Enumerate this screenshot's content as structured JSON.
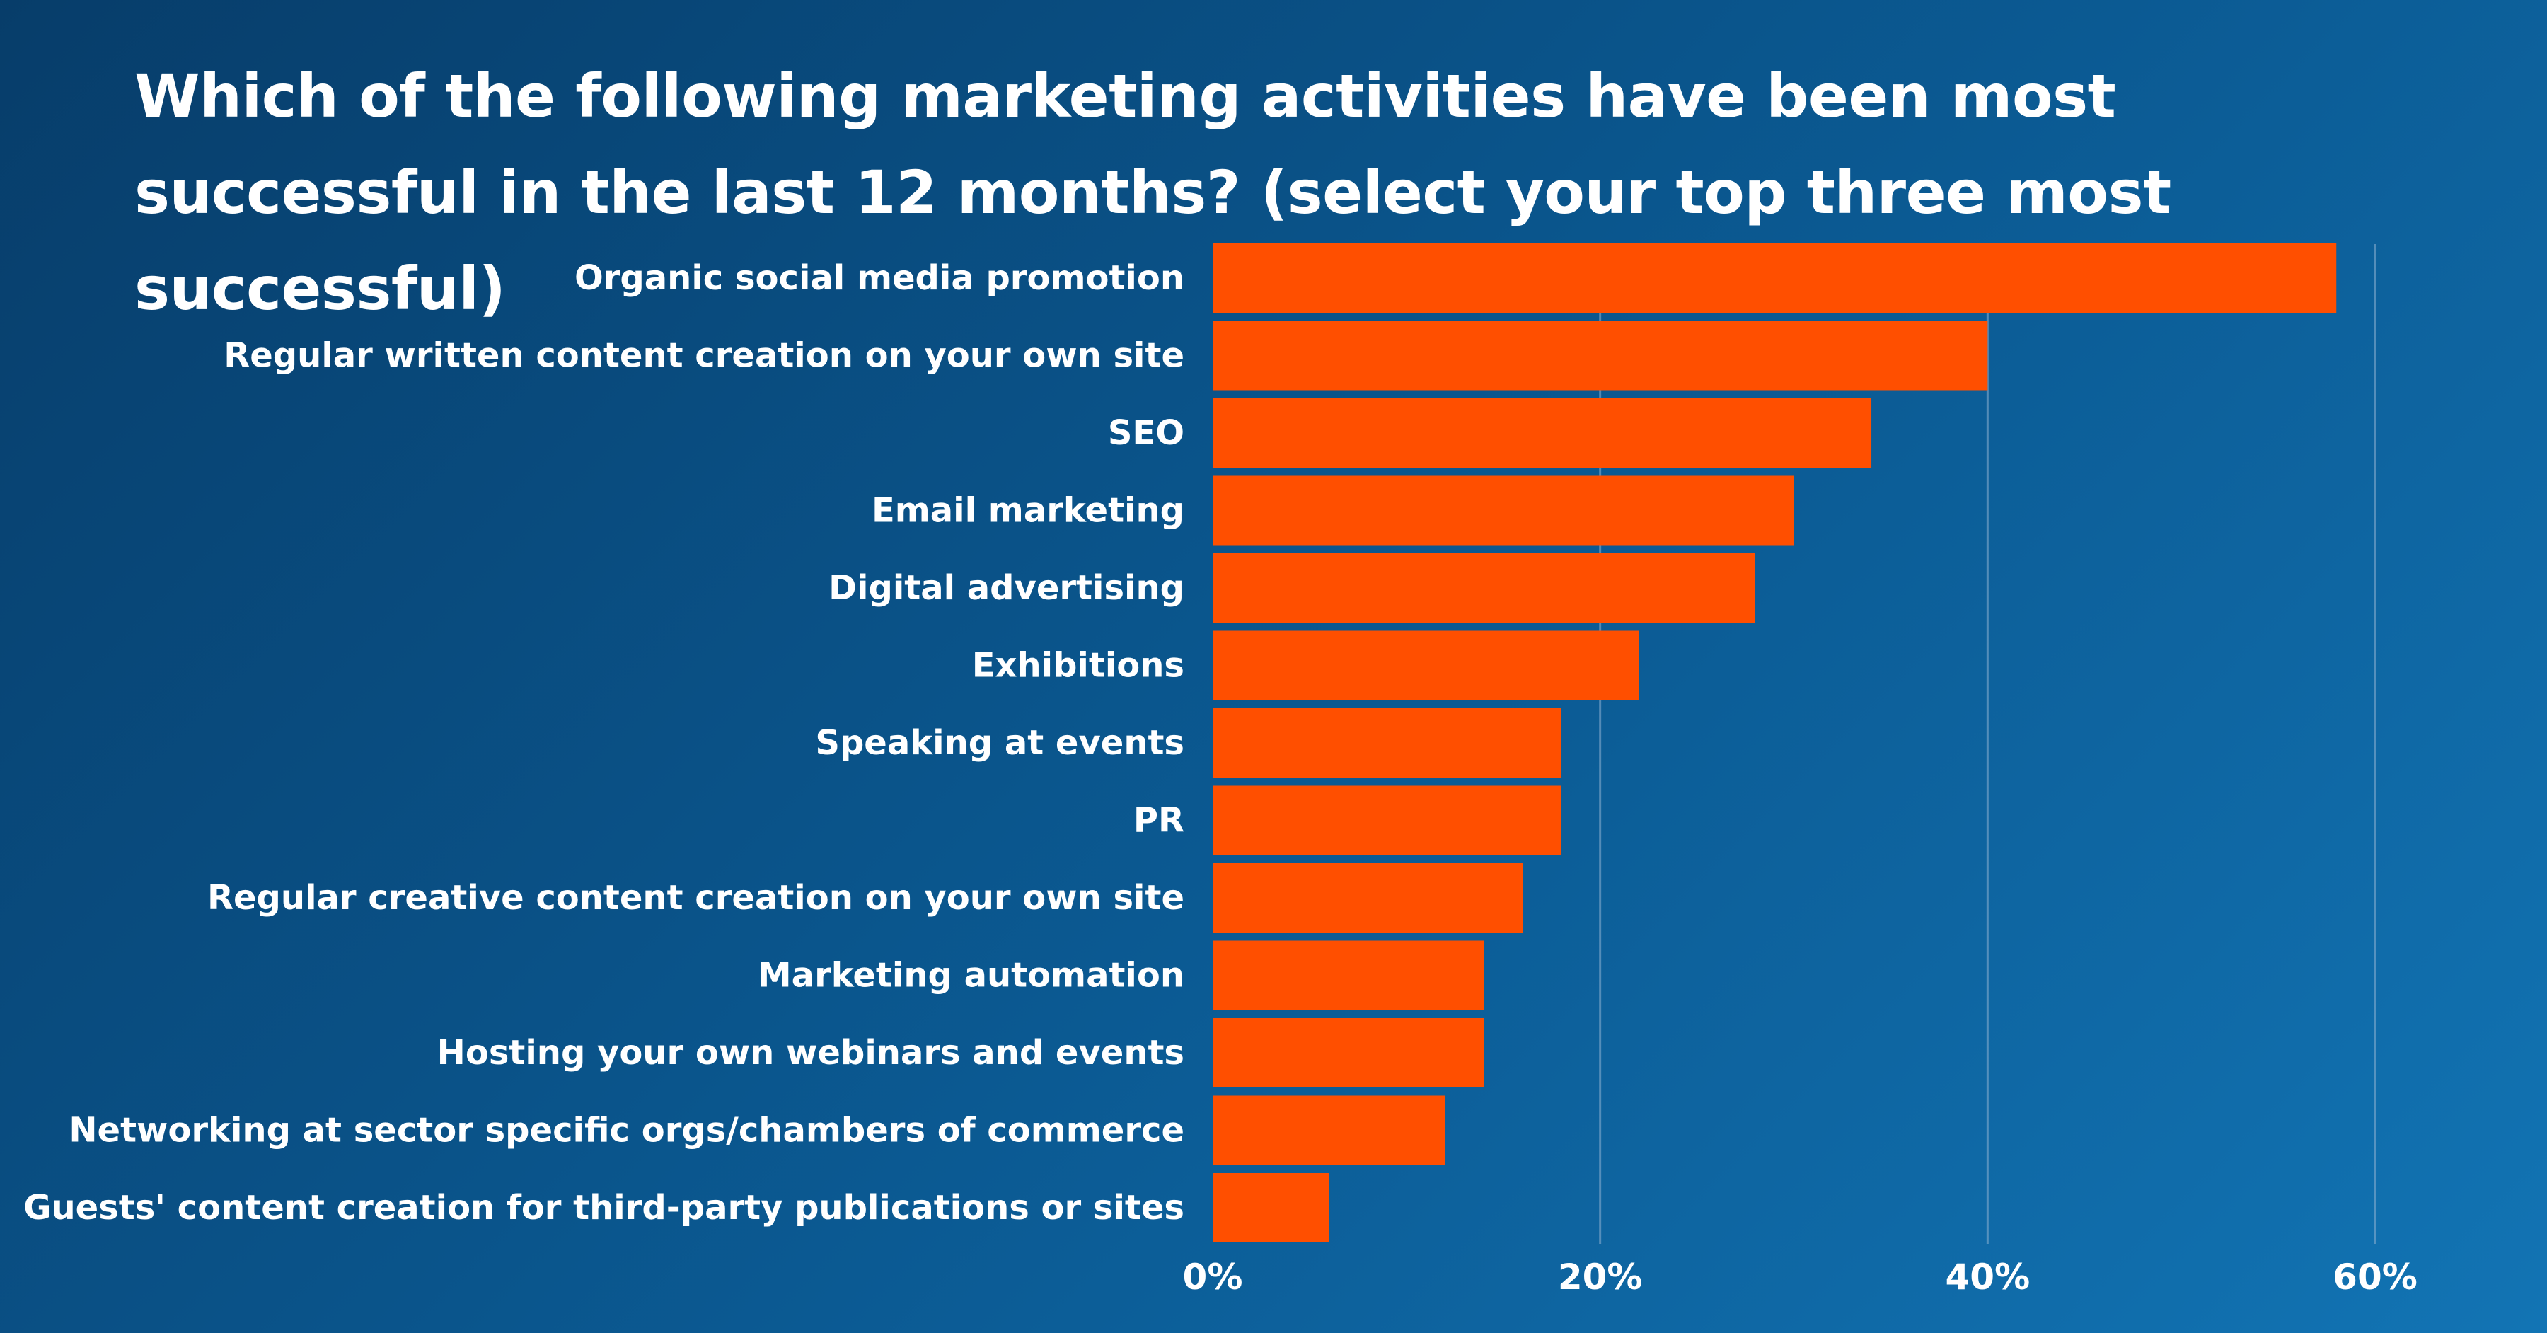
{
  "chart_data": {
    "type": "bar",
    "orientation": "horizontal",
    "title": "Which of the following marketing activities have been most successful in the last 12 months? (select your top three most successful)",
    "categories": [
      "Organic social media promotion",
      "Regular written content creation on your own site",
      "SEO",
      "Email marketing",
      "Digital advertising",
      "Exhibitions",
      "Speaking at events",
      "PR",
      "Regular creative content creation on your own site",
      "Marketing automation",
      "Hosting your own webinars and events",
      "Networking at sector specific orgs/chambers of commerce",
      "Guests' content creation for third-party publications or sites"
    ],
    "values": [
      58,
      40,
      34,
      30,
      28,
      22,
      18,
      18,
      16,
      14,
      14,
      12,
      6
    ],
    "xlim": [
      0,
      60
    ],
    "x_ticks": [
      {
        "value": 0,
        "label": "0%"
      },
      {
        "value": 20,
        "label": "20%"
      },
      {
        "value": 40,
        "label": "40%"
      },
      {
        "value": 60,
        "label": "60%"
      }
    ],
    "grid": true,
    "bar_color": "#ff4f00",
    "background_colors": [
      "#073d6a",
      "#1274b4"
    ]
  }
}
